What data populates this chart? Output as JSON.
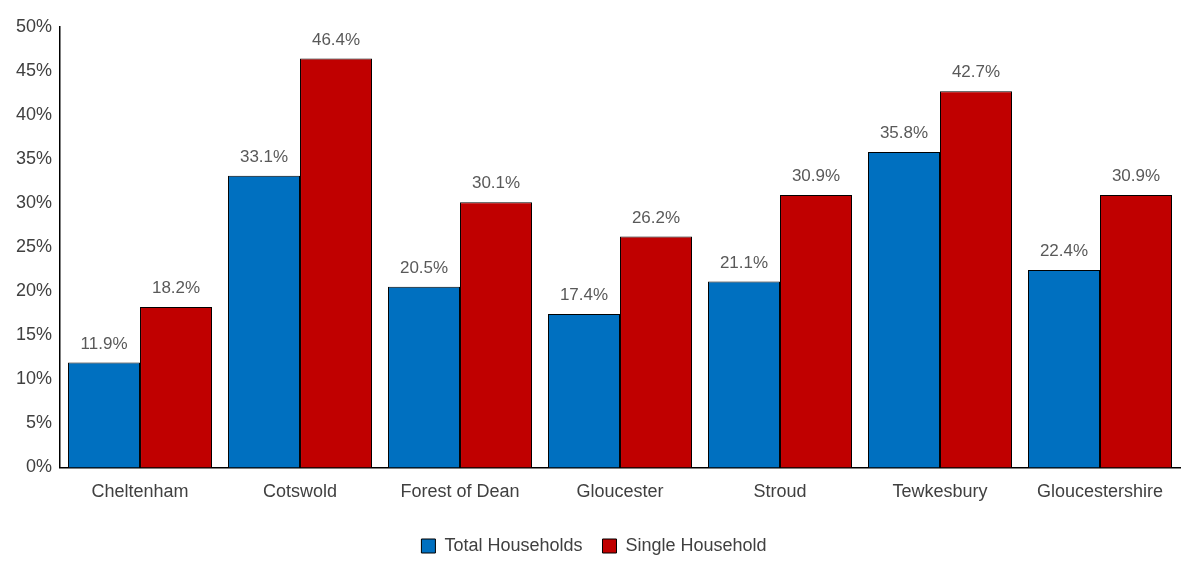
{
  "chart_data": {
    "type": "bar",
    "categories": [
      "Cheltenham",
      "Cotswold",
      "Forest of Dean",
      "Gloucester",
      "Stroud",
      "Tewkesbury",
      "Gloucestershire"
    ],
    "series": [
      {
        "name": "Total Households",
        "color": "#0070c0",
        "values": [
          11.9,
          33.1,
          20.5,
          17.4,
          21.1,
          35.8,
          22.4
        ],
        "value_labels": [
          "11.9%",
          "33.1%",
          "20.5%",
          "17.4%",
          "21.1%",
          "35.8%",
          "22.4%"
        ]
      },
      {
        "name": "Single Household",
        "color": "#c00000",
        "values": [
          18.2,
          46.4,
          30.1,
          26.2,
          30.9,
          42.7,
          30.9
        ],
        "value_labels": [
          "18.2%",
          "46.4%",
          "30.1%",
          "26.2%",
          "30.9%",
          "42.7%",
          "30.9%"
        ]
      }
    ],
    "ylim": [
      0,
      50
    ],
    "yticks": [
      {
        "value": 0,
        "label": "0%"
      },
      {
        "value": 5,
        "label": "5%"
      },
      {
        "value": 10,
        "label": "10%"
      },
      {
        "value": 15,
        "label": "15%"
      },
      {
        "value": 20,
        "label": "20%"
      },
      {
        "value": 25,
        "label": "25%"
      },
      {
        "value": 30,
        "label": "30%"
      },
      {
        "value": 35,
        "label": "35%"
      },
      {
        "value": 40,
        "label": "40%"
      },
      {
        "value": 45,
        "label": "45%"
      },
      {
        "value": 50,
        "label": "50%"
      }
    ],
    "grid": false,
    "legend": "bottom"
  }
}
